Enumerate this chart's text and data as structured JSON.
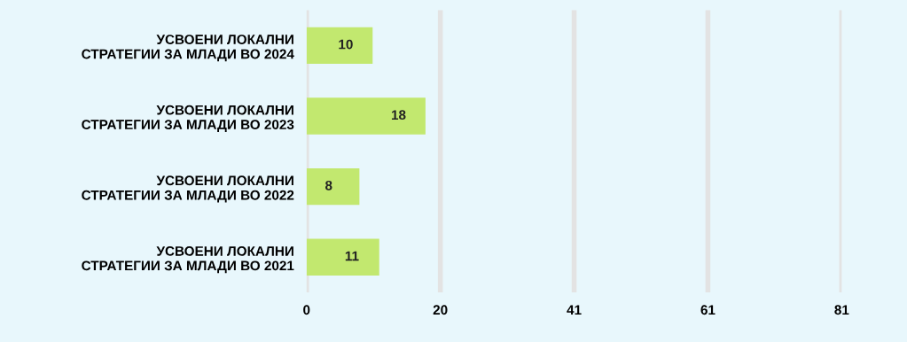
{
  "chart_data": {
    "type": "bar",
    "orientation": "horizontal",
    "categories": [
      "УСВОЕНИ ЛОКАЛНИ\nСТРАТЕГИИ ЗА МЛАДИ ВО 2024",
      "УСВОЕНИ ЛОКАЛНИ\nСТРАТЕГИИ ЗА МЛАДИ ВО 2023",
      "УСВОЕНИ ЛОКАЛНИ\nСТРАТЕГИИ ЗА МЛАДИ ВО 2022",
      "УСВОЕНИ ЛОКАЛНИ\nСТРАТЕГИИ ЗА МЛАДИ ВО 2021"
    ],
    "values": [
      10,
      18,
      8,
      11
    ],
    "color": "#c2e86f",
    "data_labels": true,
    "xlim": [
      0,
      81
    ],
    "xticks": [
      0,
      {
        "value": 20.25,
        "label": "20"
      },
      {
        "value": 40.5,
        "label": "41"
      },
      {
        "value": 60.75,
        "label": "61"
      },
      81
    ],
    "grid": "x"
  }
}
